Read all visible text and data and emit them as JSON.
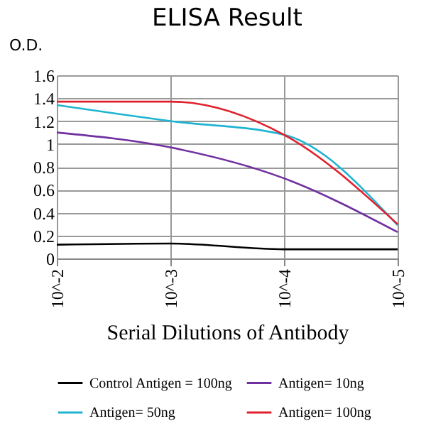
{
  "chart_data": {
    "type": "line",
    "title": "ELISA Result",
    "ylabel": "O.D.",
    "xlabel": "Serial Dilutions of Antibody",
    "categories": [
      "10^-2",
      "10^-3",
      "10^-4",
      "10^-5"
    ],
    "series": [
      {
        "name": "Control Antigen = 100ng",
        "color": "#000000",
        "values": [
          0.12,
          0.13,
          0.08,
          0.08
        ]
      },
      {
        "name": "Antigen= 10ng",
        "color": "#7030a0",
        "values": [
          1.1,
          0.97,
          0.7,
          0.23
        ]
      },
      {
        "name": "Antigen= 50ng",
        "color": "#1fb4d2",
        "values": [
          1.34,
          1.2,
          1.08,
          0.29
        ]
      },
      {
        "name": "Antigen= 100ng",
        "color": "#e0202c",
        "values": [
          1.37,
          1.37,
          1.08,
          0.3
        ]
      }
    ],
    "ylim": [
      0,
      1.6
    ],
    "yticks": [
      0,
      0.2,
      0.4,
      0.6,
      0.8,
      1,
      1.2,
      1.4,
      1.6
    ],
    "grid": true,
    "legend": "bottom"
  }
}
